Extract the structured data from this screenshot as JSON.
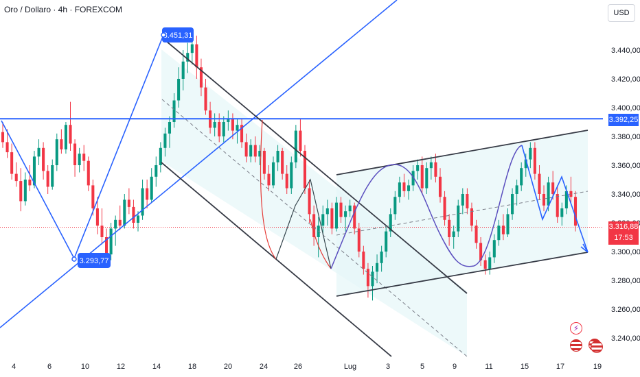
{
  "header": {
    "title": "Oro / Dollaro · 4h · FOREXCOM"
  },
  "currency_label": "USD",
  "colors": {
    "up": "#089981",
    "down": "#f23645",
    "annotation": "#2962ff",
    "channel": "#363a45",
    "channel_fill": "#e6f6f8",
    "current_price": "#f23645",
    "wave": "#5b4fbf"
  },
  "price_badges": {
    "current": "3.316,88",
    "countdown": "17:53",
    "level": "3.392,25"
  },
  "annotations": {
    "peak_label": "3.451,31",
    "trough_label": "3.293,77"
  },
  "icons": {
    "event_icon": "lightning-icon",
    "flag_icons": [
      "us-flag-icon",
      "us-flag-icon",
      "us-flag-icon"
    ]
  },
  "chart_data": {
    "type": "candlestick",
    "symbol": "Oro / Dollaro · 4h · FOREXCOM",
    "ylim": [
      3230,
      3470
    ],
    "y_ticks": [
      "3.240,00",
      "3.260,00",
      "3.280,00",
      "3.300,00",
      "3.320,00",
      "3.340,00",
      "3.360,00",
      "3.380,00",
      "3.400,00",
      "3.420,00",
      "3.440,00"
    ],
    "y_tick_values": [
      3240,
      3260,
      3280,
      3300,
      3320,
      3340,
      3360,
      3380,
      3400,
      3420,
      3440
    ],
    "x_ticks": [
      "4",
      "6",
      "10",
      "12",
      "14",
      "18",
      "20",
      "24",
      "26",
      "Lug",
      "3",
      "5",
      "9",
      "11",
      "15",
      "17",
      "19"
    ],
    "horizontal_level": 3392.25,
    "current_price": 3316.88,
    "ohlc": [
      [
        3383,
        3390,
        3372,
        3376
      ],
      [
        3376,
        3385,
        3365,
        3369
      ],
      [
        3369,
        3375,
        3350,
        3354
      ],
      [
        3354,
        3362,
        3345,
        3349
      ],
      [
        3349,
        3358,
        3328,
        3335
      ],
      [
        3335,
        3355,
        3332,
        3350
      ],
      [
        3350,
        3360,
        3342,
        3346
      ],
      [
        3346,
        3370,
        3344,
        3366
      ],
      [
        3366,
        3378,
        3360,
        3372
      ],
      [
        3372,
        3376,
        3350,
        3356
      ],
      [
        3356,
        3360,
        3340,
        3345
      ],
      [
        3345,
        3364,
        3343,
        3360
      ],
      [
        3360,
        3382,
        3356,
        3378
      ],
      [
        3378,
        3385,
        3368,
        3371
      ],
      [
        3371,
        3390,
        3368,
        3388
      ],
      [
        3388,
        3404,
        3370,
        3375
      ],
      [
        3375,
        3378,
        3352,
        3360
      ],
      [
        3360,
        3372,
        3355,
        3368
      ],
      [
        3368,
        3374,
        3356,
        3363
      ],
      [
        3363,
        3366,
        3342,
        3346
      ],
      [
        3346,
        3350,
        3325,
        3330
      ],
      [
        3330,
        3338,
        3312,
        3318
      ],
      [
        3318,
        3330,
        3305,
        3310
      ],
      [
        3310,
        3316,
        3295,
        3298
      ],
      [
        3298,
        3320,
        3294,
        3316
      ],
      [
        3316,
        3325,
        3304,
        3322
      ],
      [
        3322,
        3332,
        3315,
        3318
      ],
      [
        3318,
        3340,
        3316,
        3336
      ],
      [
        3336,
        3344,
        3326,
        3331
      ],
      [
        3331,
        3336,
        3316,
        3320
      ],
      [
        3320,
        3328,
        3314,
        3325
      ],
      [
        3325,
        3350,
        3322,
        3344
      ],
      [
        3344,
        3350,
        3330,
        3336
      ],
      [
        3336,
        3358,
        3334,
        3352
      ],
      [
        3352,
        3366,
        3345,
        3360
      ],
      [
        3360,
        3376,
        3355,
        3372
      ],
      [
        3372,
        3386,
        3366,
        3382
      ],
      [
        3382,
        3394,
        3372,
        3390
      ],
      [
        3390,
        3410,
        3386,
        3405
      ],
      [
        3405,
        3428,
        3400,
        3420
      ],
      [
        3420,
        3440,
        3412,
        3432
      ],
      [
        3432,
        3445,
        3424,
        3438
      ],
      [
        3438,
        3451,
        3430,
        3444
      ],
      [
        3444,
        3450,
        3420,
        3428
      ],
      [
        3428,
        3434,
        3408,
        3414
      ],
      [
        3414,
        3420,
        3395,
        3398
      ],
      [
        3398,
        3404,
        3382,
        3386
      ],
      [
        3386,
        3396,
        3380,
        3390
      ],
      [
        3390,
        3396,
        3376,
        3380
      ],
      [
        3380,
        3394,
        3376,
        3390
      ],
      [
        3390,
        3398,
        3384,
        3392
      ],
      [
        3392,
        3396,
        3378,
        3384
      ],
      [
        3384,
        3392,
        3375,
        3388
      ],
      [
        3388,
        3392,
        3372,
        3376
      ],
      [
        3376,
        3382,
        3362,
        3366
      ],
      [
        3366,
        3378,
        3362,
        3374
      ],
      [
        3374,
        3380,
        3362,
        3366
      ],
      [
        3366,
        3374,
        3360,
        3370
      ],
      [
        3370,
        3372,
        3350,
        3354
      ],
      [
        3354,
        3360,
        3342,
        3346
      ],
      [
        3346,
        3366,
        3344,
        3362
      ],
      [
        3362,
        3374,
        3356,
        3370
      ],
      [
        3370,
        3372,
        3350,
        3354
      ],
      [
        3354,
        3360,
        3340,
        3344
      ],
      [
        3344,
        3366,
        3340,
        3362
      ],
      [
        3362,
        3388,
        3358,
        3384
      ],
      [
        3384,
        3392,
        3366,
        3370
      ],
      [
        3370,
        3374,
        3340,
        3344
      ],
      [
        3344,
        3350,
        3320,
        3326
      ],
      [
        3326,
        3332,
        3304,
        3310
      ],
      [
        3310,
        3324,
        3296,
        3318
      ],
      [
        3318,
        3332,
        3312,
        3326
      ],
      [
        3326,
        3336,
        3318,
        3330
      ],
      [
        3330,
        3334,
        3312,
        3316
      ],
      [
        3316,
        3338,
        3314,
        3334
      ],
      [
        3334,
        3338,
        3320,
        3324
      ],
      [
        3324,
        3332,
        3314,
        3328
      ],
      [
        3328,
        3336,
        3324,
        3332
      ],
      [
        3332,
        3334,
        3312,
        3316
      ],
      [
        3316,
        3320,
        3296,
        3300
      ],
      [
        3300,
        3304,
        3284,
        3288
      ],
      [
        3288,
        3292,
        3268,
        3276
      ],
      [
        3276,
        3290,
        3266,
        3286
      ],
      [
        3286,
        3298,
        3278,
        3292
      ],
      [
        3292,
        3304,
        3286,
        3300
      ],
      [
        3300,
        3318,
        3296,
        3314
      ],
      [
        3314,
        3330,
        3310,
        3326
      ],
      [
        3326,
        3342,
        3322,
        3338
      ],
      [
        3338,
        3352,
        3334,
        3348
      ],
      [
        3348,
        3354,
        3338,
        3342
      ],
      [
        3342,
        3350,
        3336,
        3346
      ],
      [
        3346,
        3360,
        3342,
        3356
      ],
      [
        3356,
        3364,
        3350,
        3360
      ],
      [
        3360,
        3366,
        3340,
        3344
      ],
      [
        3344,
        3362,
        3340,
        3358
      ],
      [
        3358,
        3366,
        3350,
        3362
      ],
      [
        3362,
        3368,
        3348,
        3352
      ],
      [
        3352,
        3358,
        3334,
        3338
      ],
      [
        3338,
        3342,
        3318,
        3322
      ],
      [
        3322,
        3326,
        3304,
        3310
      ],
      [
        3310,
        3318,
        3302,
        3314
      ],
      [
        3314,
        3336,
        3310,
        3332
      ],
      [
        3332,
        3344,
        3326,
        3340
      ],
      [
        3340,
        3344,
        3326,
        3330
      ],
      [
        3330,
        3334,
        3314,
        3318
      ],
      [
        3318,
        3322,
        3302,
        3306
      ],
      [
        3306,
        3310,
        3290,
        3294
      ],
      [
        3294,
        3298,
        3284,
        3288
      ],
      [
        3288,
        3300,
        3284,
        3296
      ],
      [
        3296,
        3312,
        3292,
        3308
      ],
      [
        3308,
        3322,
        3304,
        3318
      ],
      [
        3318,
        3326,
        3308,
        3312
      ],
      [
        3312,
        3330,
        3310,
        3326
      ],
      [
        3326,
        3344,
        3322,
        3340
      ],
      [
        3340,
        3350,
        3332,
        3346
      ],
      [
        3346,
        3362,
        3342,
        3358
      ],
      [
        3358,
        3368,
        3352,
        3364
      ],
      [
        3364,
        3376,
        3358,
        3372
      ],
      [
        3372,
        3376,
        3350,
        3354
      ],
      [
        3354,
        3360,
        3336,
        3340
      ],
      [
        3340,
        3346,
        3328,
        3332
      ],
      [
        3332,
        3352,
        3328,
        3348
      ],
      [
        3348,
        3356,
        3336,
        3340
      ],
      [
        3340,
        3346,
        3320,
        3324
      ],
      [
        3324,
        3334,
        3318,
        3330
      ],
      [
        3330,
        3346,
        3326,
        3342
      ],
      [
        3342,
        3352,
        3334,
        3338
      ],
      [
        3338,
        3342,
        3314,
        3318
      ]
    ]
  }
}
